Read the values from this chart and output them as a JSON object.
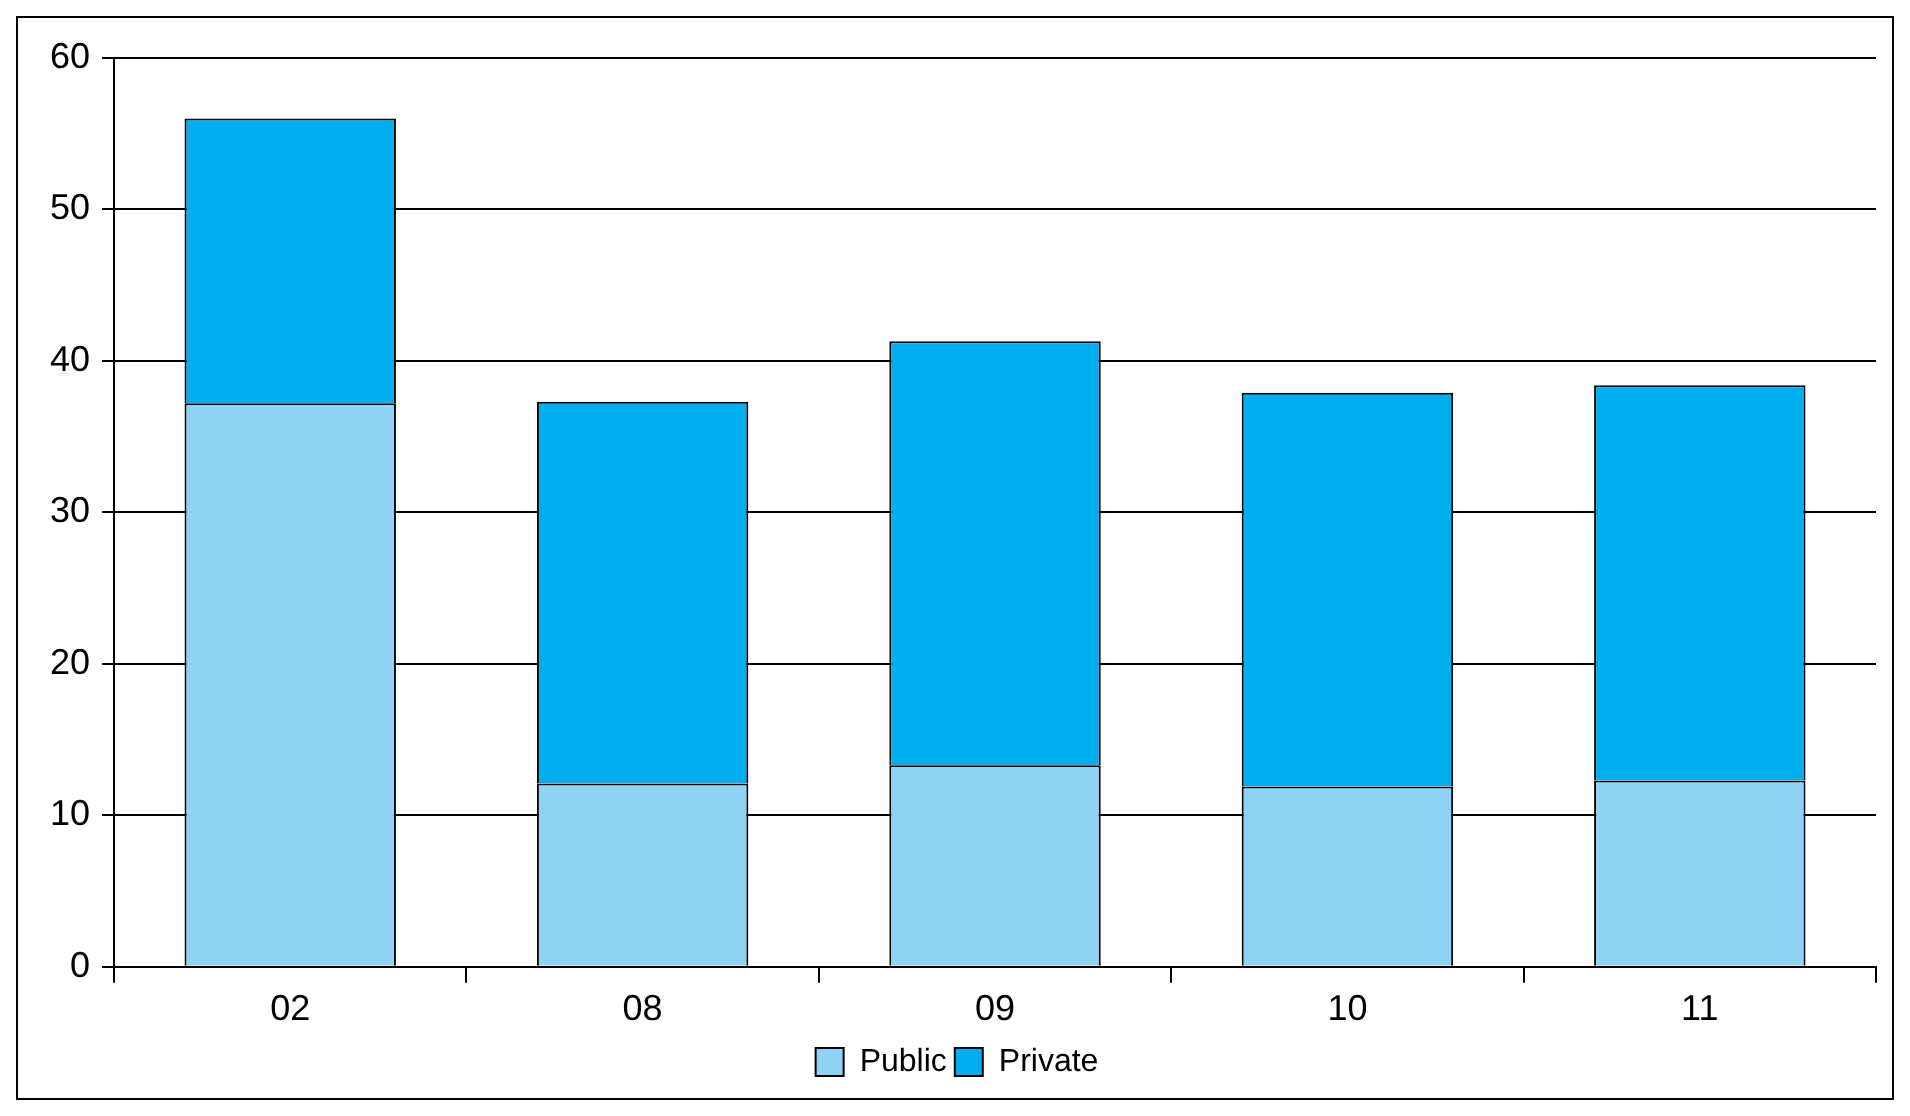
{
  "chart_data": {
    "type": "bar",
    "stacked": true,
    "categories": [
      "02",
      "08",
      "09",
      "10",
      "11"
    ],
    "series": [
      {
        "name": "Public",
        "color": "#8fd3f4",
        "values": [
          37.2,
          12.1,
          13.3,
          11.9,
          12.3
        ]
      },
      {
        "name": "Private",
        "color": "#00aeef",
        "values": [
          18.8,
          25.2,
          28.0,
          26.0,
          26.1
        ]
      }
    ],
    "ylim": [
      0,
      60
    ],
    "yticks": [
      0,
      10,
      20,
      30,
      40,
      50,
      60
    ],
    "grid": "y",
    "legend": "bottom"
  }
}
